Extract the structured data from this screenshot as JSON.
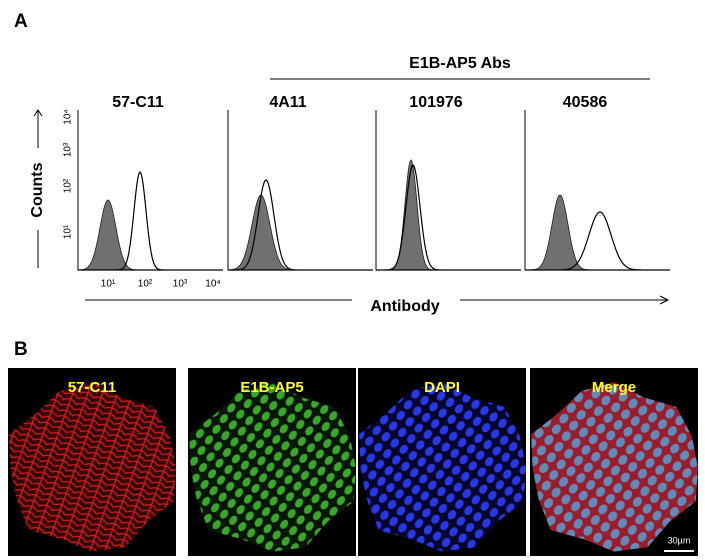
{
  "panel_a": {
    "label": "A",
    "group_label": "E1B-AP5 Abs",
    "histogram_titles": [
      "57-C11",
      "4A11",
      "101976",
      "40586"
    ],
    "y_axis_label": "Counts",
    "y_ticks": [
      "10¹",
      "10²",
      "10³",
      "10⁴"
    ],
    "x_ticks": [
      "10¹",
      "10²",
      "10³",
      "10⁴"
    ],
    "x_axis_label": "Antibody"
  },
  "panel_b": {
    "label": "B",
    "image_labels": [
      "57-C11",
      "E1B-AP5",
      "DAPI",
      "Merge"
    ],
    "scale_bar": "30µm"
  }
}
